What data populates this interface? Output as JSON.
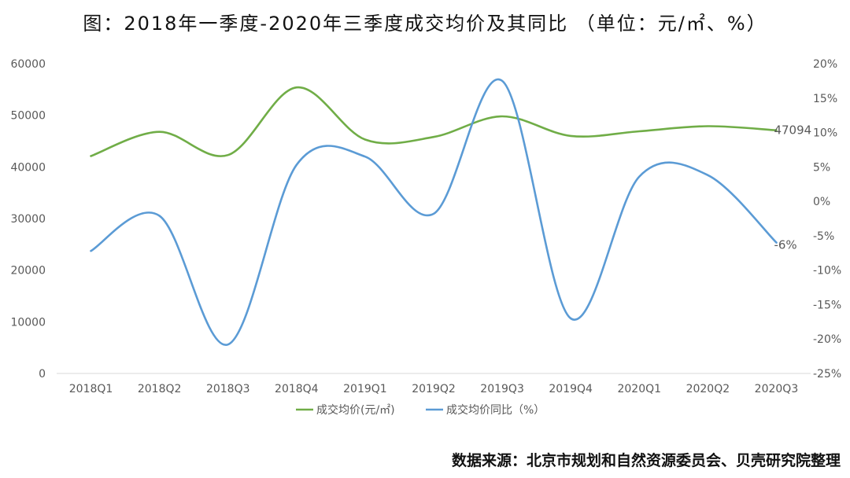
{
  "title": "图：2018年一季度-2020年三季度成交均价及其同比 （单位：元/㎡、%）",
  "source": "数据来源：北京市规划和自然资源委员会、贝壳研究院整理",
  "colors": {
    "price": "#70AD47",
    "yoy": "#5B9BD5",
    "axis": "#d9d9d9",
    "text": "#595959"
  },
  "chart_data": {
    "type": "line",
    "title": "图：2018年一季度-2020年三季度成交均价及其同比 （单位：元/㎡、%）",
    "categories": [
      "2018Q1",
      "2018Q2",
      "2018Q3",
      "2018Q4",
      "2019Q1",
      "2019Q2",
      "2019Q3",
      "2019Q4",
      "2020Q1",
      "2020Q2",
      "2020Q3"
    ],
    "y_left": {
      "min": 0,
      "max": 60000,
      "step": 10000,
      "ticks": [
        "0",
        "10000",
        "20000",
        "30000",
        "40000",
        "50000",
        "60000"
      ]
    },
    "y_right": {
      "min": -25,
      "max": 20,
      "step": 5,
      "ticks": [
        "-25%",
        "-20%",
        "-15%",
        "-10%",
        "-5%",
        "0%",
        "5%",
        "10%",
        "15%",
        "20%"
      ]
    },
    "grid": false,
    "legend_position": "bottom",
    "series": [
      {
        "name": "成交均价(元/㎡)",
        "axis": "left",
        "values": [
          42100,
          46800,
          42300,
          55400,
          45300,
          45800,
          49800,
          46000,
          46900,
          47900,
          47094
        ],
        "end_label": "47094"
      },
      {
        "name": "成交均价同比（%）",
        "axis": "right",
        "values": [
          -7.2,
          -2.1,
          -20.8,
          5.3,
          6.5,
          -1.8,
          17.5,
          -17.0,
          3.6,
          3.8,
          -6
        ],
        "end_label": "-6%"
      }
    ]
  }
}
